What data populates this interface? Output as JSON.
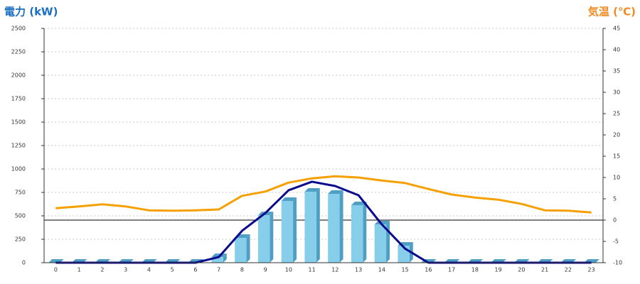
{
  "chart_data": {
    "type": "bar-line",
    "title": "電力 (kW)",
    "y2_title": "気温 (℃)",
    "categories": [
      "0",
      "1",
      "2",
      "3",
      "4",
      "5",
      "6",
      "7",
      "8",
      "9",
      "10",
      "11",
      "12",
      "13",
      "14",
      "15",
      "16",
      "17",
      "18",
      "19",
      "20",
      "21",
      "22",
      "23"
    ],
    "series": [
      {
        "type": "bar",
        "color": "#87ceeb",
        "side_color": "#4f9fc4",
        "values": [
          0,
          0,
          0,
          0,
          0,
          0,
          0,
          60,
          265,
          507,
          659,
          758,
          735,
          614,
          409,
          182,
          0,
          0,
          0,
          0,
          0,
          0,
          0,
          0
        ]
      },
      {
        "type": "line",
        "color": "#0a0a8c",
        "values": [
          0,
          0,
          0,
          0,
          0,
          0,
          0,
          60,
          340,
          530,
          773,
          864,
          818,
          720,
          409,
          150,
          0,
          0,
          0,
          0,
          0,
          0,
          0,
          0
        ]
      },
      {
        "type": "line",
        "axis": "y2",
        "color": "#f5a000",
        "values": [
          2.8,
          3.2,
          3.7,
          3.2,
          2.3,
          2.2,
          2.3,
          2.5,
          5.7,
          6.7,
          8.8,
          9.8,
          10.3,
          10,
          9.3,
          8.7,
          7.3,
          6,
          5.3,
          4.8,
          3.8,
          2.3,
          2.2,
          1.8
        ]
      }
    ],
    "ylim": [
      0,
      2500
    ],
    "yticks": [
      0,
      250,
      500,
      750,
      1000,
      1250,
      1500,
      1750,
      2000,
      2250,
      2500
    ],
    "y2lim": [
      -10,
      45
    ],
    "y2ticks": [
      -10,
      -5,
      0,
      5,
      10,
      15,
      20,
      25,
      30,
      35,
      40,
      45
    ],
    "grid": true,
    "y2_zero_line": true,
    "title_color": "#1a6fc0",
    "y2_title_color": "#f08a20"
  }
}
